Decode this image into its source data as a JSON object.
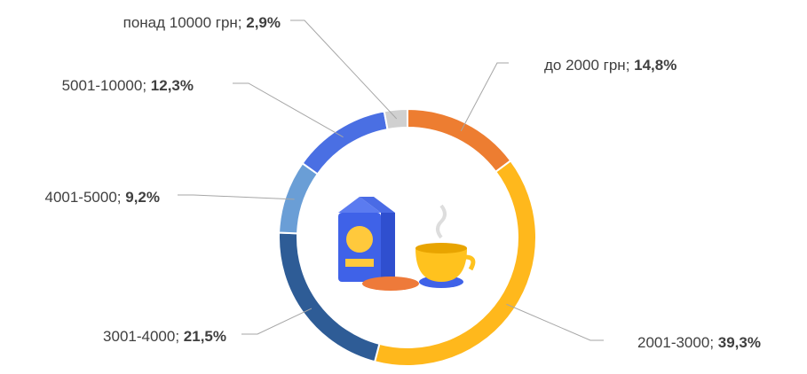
{
  "chart_data": {
    "type": "donut",
    "categories": [
      "до 2000 грн",
      "2001-3000",
      "3001-4000",
      "4001-5000",
      "5001-10000",
      "понад 10000 грн"
    ],
    "values": [
      14.8,
      39.3,
      21.5,
      9.2,
      12.3,
      2.9
    ],
    "value_labels": [
      "14,8%",
      "39,3%",
      "21,5%",
      "9,2%",
      "12,3%",
      "2,9%"
    ],
    "label_separator": "; ",
    "colors": [
      "#ED7D31",
      "#FFB81C",
      "#2E5C96",
      "#6A9ED6",
      "#4A6FE3",
      "#D0D0D0"
    ]
  }
}
